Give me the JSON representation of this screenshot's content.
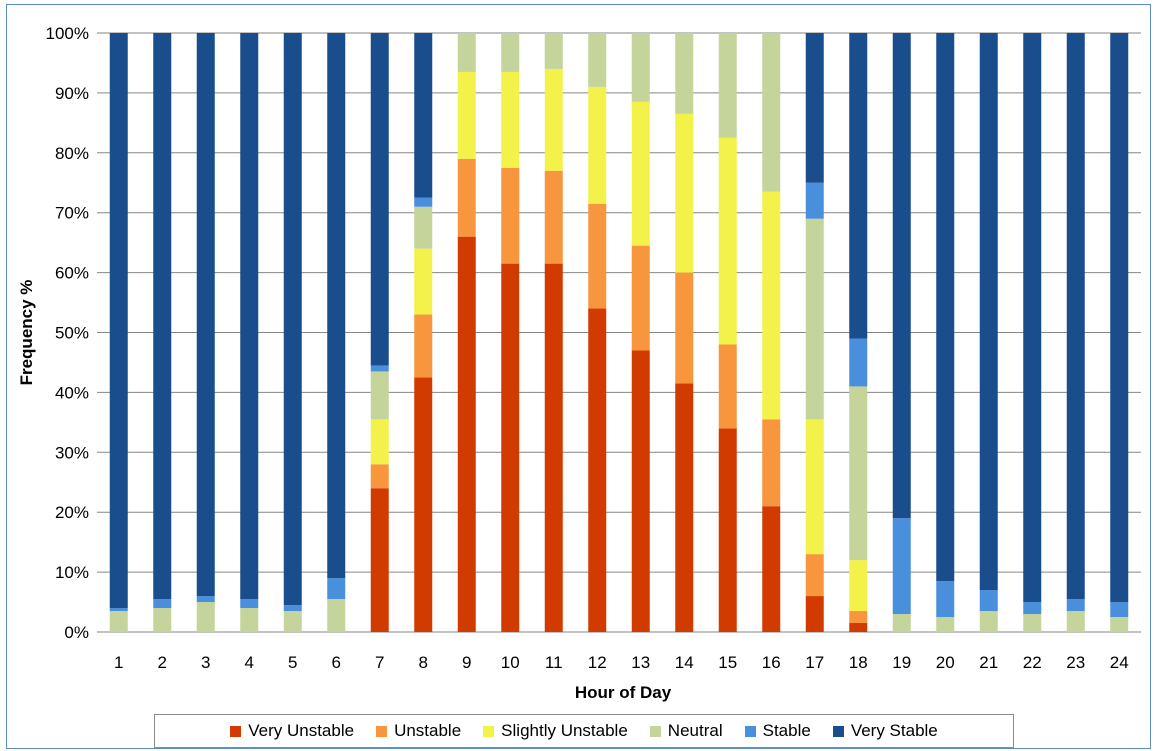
{
  "chart_data": {
    "type": "bar",
    "stacked": true,
    "categories": [
      "1",
      "2",
      "3",
      "4",
      "5",
      "6",
      "7",
      "8",
      "9",
      "10",
      "11",
      "12",
      "13",
      "14",
      "15",
      "16",
      "17",
      "18",
      "19",
      "20",
      "21",
      "22",
      "23",
      "24"
    ],
    "series": [
      {
        "name": "Very Unstable",
        "color": "#d13b00",
        "values": [
          0,
          0,
          0,
          0,
          0,
          0,
          24,
          42.5,
          66,
          61.5,
          61.5,
          54,
          47,
          41.5,
          34,
          21,
          6,
          1.5,
          0,
          0,
          0,
          0,
          0,
          0
        ]
      },
      {
        "name": "Unstable",
        "color": "#f7963c",
        "values": [
          0,
          0,
          0,
          0,
          0,
          0,
          4,
          10.5,
          13,
          16,
          15.5,
          17.5,
          17.5,
          18.5,
          14,
          14.5,
          7,
          2,
          0,
          0,
          0,
          0,
          0,
          0
        ]
      },
      {
        "name": "Slightly Unstable",
        "color": "#f2f24a",
        "values": [
          0,
          0,
          0,
          0,
          0,
          0,
          7.5,
          11,
          14.5,
          16,
          17,
          19.5,
          24,
          26.5,
          34.5,
          38,
          22.5,
          8.5,
          0,
          0,
          0,
          0,
          0,
          0
        ]
      },
      {
        "name": "Neutral",
        "color": "#c4d49b",
        "values": [
          3.5,
          4,
          5,
          4,
          3.5,
          5.5,
          8,
          7,
          6.5,
          6.5,
          6,
          9,
          11.5,
          13.5,
          17.5,
          26.5,
          33.5,
          29,
          3,
          2.5,
          3.5,
          3,
          3.5,
          2.5
        ]
      },
      {
        "name": "Stable",
        "color": "#4a8fdb",
        "values": [
          0.5,
          1.5,
          1,
          1.5,
          1,
          3.5,
          1,
          1.5,
          0,
          0,
          0,
          0,
          0,
          0,
          0,
          0,
          6,
          8,
          16,
          6,
          3.5,
          2,
          2,
          2.5
        ]
      },
      {
        "name": "Very Stable",
        "color": "#1a4d8c",
        "values": [
          96,
          94.5,
          94,
          94.5,
          95.5,
          91,
          55.5,
          27.5,
          0,
          0,
          0,
          0,
          0,
          0,
          0,
          0,
          25,
          51,
          81,
          91.5,
          93,
          95,
          94.5,
          95
        ]
      }
    ],
    "xlabel": "Hour of Day",
    "ylabel": "Frequency %",
    "ylim": [
      0,
      100
    ],
    "yticks": [
      "0%",
      "10%",
      "20%",
      "30%",
      "40%",
      "50%",
      "60%",
      "70%",
      "80%",
      "90%",
      "100%"
    ],
    "grid": true,
    "legend_position": "bottom"
  }
}
